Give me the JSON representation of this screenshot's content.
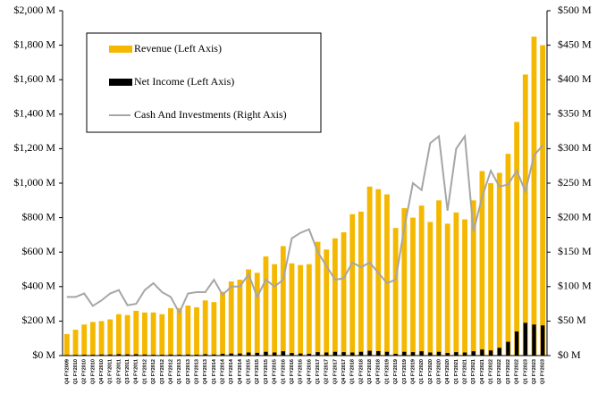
{
  "chart_data": {
    "type": "bar",
    "categories": [
      "Q4 FY2009",
      "Q1 FY2010",
      "Q2 FY2010",
      "Q3 FY2010",
      "Q4 FY2010",
      "Q1 FY2011",
      "Q2 FY2011",
      "Q3 FY2011",
      "Q4 FY2011",
      "Q1 FY2012",
      "Q2 FY2012",
      "Q3 FY2012",
      "Q4 FY2012",
      "Q1 FY2013",
      "Q2 FY2013",
      "Q3 FY2013",
      "Q4 FY2013",
      "Q1 FY2014",
      "Q2 FY2014",
      "Q3 FY2014",
      "Q4 FY2014",
      "Q1 FY2015",
      "Q2 FY2015",
      "Q3 FY2015",
      "Q4 FY2015",
      "Q1 FY2016",
      "Q2 FY2016",
      "Q3 FY2016",
      "Q4 FY2016",
      "Q1 FY2017",
      "Q2 FY2017",
      "Q3 FY2017",
      "Q4 FY2017",
      "Q1 FY2018",
      "Q2 FY2018",
      "Q3 FY2018",
      "Q4 FY2018",
      "Q1 FY2019",
      "Q2 FY2019",
      "Q3 FY2019",
      "Q4 FY2019",
      "Q1 FY2020",
      "Q2 FY2020",
      "Q3 FY2020",
      "Q4 FY2020",
      "Q1 FY2021",
      "Q2 FY2021",
      "Q3 FY2021",
      "Q4 FY2021",
      "Q1 FY2022",
      "Q2 FY2022",
      "Q3 FY2022",
      "Q4 FY2022",
      "Q1 FY2023",
      "Q2 FY2023",
      "Q3 FY2023"
    ],
    "series": [
      {
        "name": "Revenue (Left Axis)",
        "color": "#f5b800",
        "values": [
          125,
          150,
          180,
          195,
          200,
          210,
          240,
          235,
          260,
          250,
          250,
          240,
          275,
          275,
          290,
          280,
          320,
          310,
          370,
          430,
          440,
          500,
          480,
          575,
          530,
          635,
          535,
          525,
          530,
          660,
          615,
          680,
          715,
          820,
          835,
          980,
          965,
          935,
          740,
          855,
          800,
          870,
          775,
          900,
          765,
          830,
          790,
          900,
          1070,
          1000,
          1060,
          1170,
          1355,
          1630,
          1850,
          1800
        ]
      },
      {
        "name": "Net Income (Left Axis)",
        "color": "#000000",
        "values": [
          3,
          4,
          5,
          5,
          6,
          6,
          8,
          7,
          8,
          6,
          5,
          5,
          6,
          5,
          6,
          5,
          8,
          6,
          10,
          12,
          12,
          18,
          16,
          22,
          18,
          25,
          15,
          12,
          10,
          20,
          18,
          22,
          20,
          18,
          22,
          28,
          26,
          22,
          10,
          22,
          20,
          25,
          18,
          22,
          15,
          20,
          18,
          25,
          35,
          30,
          45,
          80,
          140,
          190,
          180,
          175
        ]
      },
      {
        "name": "Cash And Investments (Right Axis)",
        "color": "#a6a6a6",
        "axis": "y2",
        "values": [
          85,
          85,
          90,
          72,
          80,
          90,
          95,
          73,
          75,
          95,
          105,
          92,
          85,
          62,
          90,
          92,
          92,
          110,
          88,
          100,
          100,
          118,
          85,
          110,
          100,
          110,
          170,
          178,
          183,
          150,
          130,
          110,
          112,
          135,
          128,
          135,
          120,
          105,
          110,
          185,
          250,
          240,
          308,
          318,
          210,
          300,
          318,
          180,
          230,
          268,
          245,
          248,
          268,
          238,
          290,
          305
        ]
      }
    ],
    "ylim": [
      0,
      2000
    ],
    "yticks": [
      {
        "value": 0,
        "label": "$0 M"
      },
      {
        "value": 200,
        "label": "$200 M"
      },
      {
        "value": 400,
        "label": "$400 M"
      },
      {
        "value": 600,
        "label": "$600 M"
      },
      {
        "value": 800,
        "label": "$800 M"
      },
      {
        "value": 1000,
        "label": "$1,000 M"
      },
      {
        "value": 1200,
        "label": "$1,200 M"
      },
      {
        "value": 1400,
        "label": "$1,400 M"
      },
      {
        "value": 1600,
        "label": "$1,600 M"
      },
      {
        "value": 1800,
        "label": "$1,800 M"
      },
      {
        "value": 2000,
        "label": "$2,000 M"
      }
    ],
    "y2lim": [
      0,
      500
    ],
    "y2ticks": [
      {
        "value": 0,
        "label": "$0 M"
      },
      {
        "value": 50,
        "label": "$50 M"
      },
      {
        "value": 100,
        "label": "$100 M"
      },
      {
        "value": 150,
        "label": "$150 M"
      },
      {
        "value": 200,
        "label": "$200 M"
      },
      {
        "value": 250,
        "label": "$250 M"
      },
      {
        "value": 300,
        "label": "$300 M"
      },
      {
        "value": 350,
        "label": "$350 M"
      },
      {
        "value": 400,
        "label": "$400 M"
      },
      {
        "value": 450,
        "label": "$450 M"
      },
      {
        "value": 500,
        "label": "$500 M"
      }
    ]
  }
}
